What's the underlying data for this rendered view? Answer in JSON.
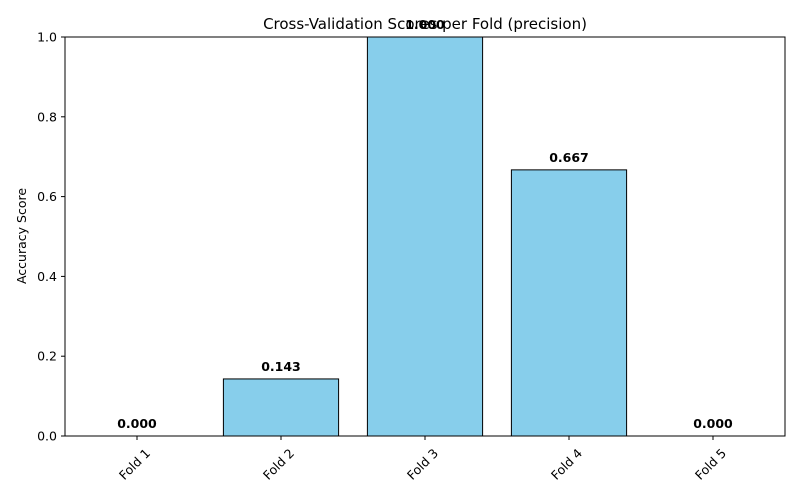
{
  "chart_data": {
    "type": "bar",
    "title": "Cross-Validation Scores per Fold (precision)",
    "xlabel": "",
    "ylabel": "Accuracy Score",
    "categories": [
      "Fold 1",
      "Fold 2",
      "Fold 3",
      "Fold 4",
      "Fold 5"
    ],
    "values": [
      0.0,
      0.143,
      1.0,
      0.667,
      0.0
    ],
    "value_labels": [
      "0.000",
      "0.143",
      "1.000",
      "0.667",
      "0.000"
    ],
    "ylim": [
      0,
      1.0
    ],
    "yticks": [
      "0.0",
      "0.2",
      "0.4",
      "0.6",
      "0.8",
      "1.0"
    ],
    "grid": false,
    "legend": "none",
    "colors": {
      "bar_fill": "#87CEEB",
      "bar_edge": "#000000"
    }
  }
}
